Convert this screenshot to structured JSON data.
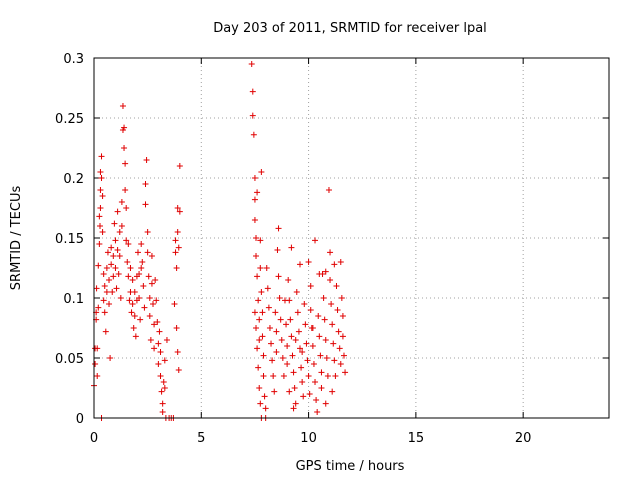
{
  "chart_data": {
    "type": "scatter",
    "title": "Day 203 of 2011, SRMTID for receiver lpal",
    "xlabel": "GPS time / hours",
    "ylabel": "SRMTID / TECUs",
    "xlim": [
      0,
      24
    ],
    "ylim": [
      0,
      0.3
    ],
    "xticks": [
      0,
      5,
      10,
      15,
      20
    ],
    "xtick_labels": [
      "0",
      "5",
      "10",
      "15",
      "20"
    ],
    "yticks": [
      0,
      0.05,
      0.1,
      0.15,
      0.2,
      0.25,
      0.3
    ],
    "ytick_labels": [
      "0",
      "0.05",
      "0.1",
      "0.15",
      "0.2",
      "0.25",
      "0.3"
    ],
    "grid": true,
    "marker": "+",
    "series": [
      {
        "name": "SRMTID",
        "color": "#e00000",
        "points": [
          [
            0.0,
            0.027
          ],
          [
            0.05,
            0.045
          ],
          [
            0.05,
            0.058
          ],
          [
            0.1,
            0.082
          ],
          [
            0.1,
            0.088
          ],
          [
            0.12,
            0.108
          ],
          [
            0.15,
            0.058
          ],
          [
            0.15,
            0.035
          ],
          [
            0.2,
            0.092
          ],
          [
            0.2,
            0.127
          ],
          [
            0.25,
            0.168
          ],
          [
            0.25,
            0.145
          ],
          [
            0.28,
            0.16
          ],
          [
            0.3,
            0.19
          ],
          [
            0.3,
            0.205
          ],
          [
            0.3,
            0.175
          ],
          [
            0.35,
            0.218
          ],
          [
            0.35,
            0.2
          ],
          [
            0.35,
            0.0
          ],
          [
            0.4,
            0.185
          ],
          [
            0.4,
            0.155
          ],
          [
            0.45,
            0.12
          ],
          [
            0.45,
            0.098
          ],
          [
            0.5,
            0.11
          ],
          [
            0.5,
            0.088
          ],
          [
            0.55,
            0.072
          ],
          [
            0.6,
            0.125
          ],
          [
            0.6,
            0.105
          ],
          [
            0.65,
            0.138
          ],
          [
            0.7,
            0.115
          ],
          [
            0.7,
            0.095
          ],
          [
            0.75,
            0.05
          ],
          [
            0.8,
            0.142
          ],
          [
            0.8,
            0.128
          ],
          [
            0.85,
            0.105
          ],
          [
            0.9,
            0.135
          ],
          [
            0.9,
            0.118
          ],
          [
            0.95,
            0.162
          ],
          [
            1.0,
            0.148
          ],
          [
            1.0,
            0.125
          ],
          [
            1.05,
            0.108
          ],
          [
            1.1,
            0.172
          ],
          [
            1.1,
            0.14
          ],
          [
            1.15,
            0.12
          ],
          [
            1.2,
            0.155
          ],
          [
            1.2,
            0.135
          ],
          [
            1.25,
            0.1
          ],
          [
            1.3,
            0.18
          ],
          [
            1.3,
            0.16
          ],
          [
            1.35,
            0.24
          ],
          [
            1.35,
            0.26
          ],
          [
            1.4,
            0.242
          ],
          [
            1.4,
            0.225
          ],
          [
            1.45,
            0.212
          ],
          [
            1.45,
            0.19
          ],
          [
            1.5,
            0.175
          ],
          [
            1.5,
            0.148
          ],
          [
            1.55,
            0.13
          ],
          [
            1.6,
            0.145
          ],
          [
            1.6,
            0.118
          ],
          [
            1.65,
            0.098
          ],
          [
            1.7,
            0.125
          ],
          [
            1.7,
            0.105
          ],
          [
            1.75,
            0.088
          ],
          [
            1.8,
            0.115
          ],
          [
            1.8,
            0.095
          ],
          [
            1.85,
            0.075
          ],
          [
            1.9,
            0.105
          ],
          [
            1.9,
            0.085
          ],
          [
            1.95,
            0.068
          ],
          [
            2.0,
            0.098
          ],
          [
            2.0,
            0.118
          ],
          [
            2.05,
            0.138
          ],
          [
            2.1,
            0.12
          ],
          [
            2.1,
            0.1
          ],
          [
            2.15,
            0.082
          ],
          [
            2.2,
            0.125
          ],
          [
            2.2,
            0.145
          ],
          [
            2.25,
            0.13
          ],
          [
            2.3,
            0.11
          ],
          [
            2.35,
            0.092
          ],
          [
            2.4,
            0.195
          ],
          [
            2.4,
            0.178
          ],
          [
            2.45,
            0.215
          ],
          [
            2.5,
            0.155
          ],
          [
            2.5,
            0.138
          ],
          [
            2.55,
            0.118
          ],
          [
            2.6,
            0.1
          ],
          [
            2.6,
            0.085
          ],
          [
            2.65,
            0.065
          ],
          [
            2.7,
            0.135
          ],
          [
            2.7,
            0.112
          ],
          [
            2.75,
            0.095
          ],
          [
            2.8,
            0.078
          ],
          [
            2.8,
            0.058
          ],
          [
            2.85,
            0.115
          ],
          [
            2.9,
            0.098
          ],
          [
            2.95,
            0.08
          ],
          [
            3.0,
            0.062
          ],
          [
            3.0,
            0.045
          ],
          [
            3.05,
            0.072
          ],
          [
            3.1,
            0.055
          ],
          [
            3.1,
            0.035
          ],
          [
            3.15,
            0.022
          ],
          [
            3.2,
            0.012
          ],
          [
            3.2,
            0.005
          ],
          [
            3.25,
            0.03
          ],
          [
            3.3,
            0.048
          ],
          [
            3.3,
            0.025
          ],
          [
            3.35,
            0.0
          ],
          [
            3.4,
            0.065
          ],
          [
            3.5,
            0.0
          ],
          [
            3.6,
            0.0
          ],
          [
            3.7,
            0.0
          ],
          [
            3.75,
            0.095
          ],
          [
            3.8,
            0.148
          ],
          [
            3.8,
            0.138
          ],
          [
            3.85,
            0.125
          ],
          [
            3.9,
            0.175
          ],
          [
            3.9,
            0.155
          ],
          [
            3.95,
            0.142
          ],
          [
            4.0,
            0.172
          ],
          [
            4.0,
            0.21
          ],
          [
            3.9,
            0.055
          ],
          [
            3.95,
            0.04
          ],
          [
            3.85,
            0.075
          ],
          [
            7.35,
            0.295
          ],
          [
            7.4,
            0.272
          ],
          [
            7.4,
            0.252
          ],
          [
            7.45,
            0.236
          ],
          [
            7.5,
            0.2
          ],
          [
            7.5,
            0.182
          ],
          [
            7.5,
            0.165
          ],
          [
            7.55,
            0.15
          ],
          [
            7.55,
            0.135
          ],
          [
            7.6,
            0.188
          ],
          [
            7.6,
            0.118
          ],
          [
            7.65,
            0.098
          ],
          [
            7.7,
            0.082
          ],
          [
            7.7,
            0.065
          ],
          [
            7.75,
            0.148
          ],
          [
            7.75,
            0.125
          ],
          [
            7.8,
            0.205
          ],
          [
            7.8,
            0.105
          ],
          [
            7.85,
            0.088
          ],
          [
            7.85,
            0.068
          ],
          [
            7.9,
            0.052
          ],
          [
            7.9,
            0.035
          ],
          [
            7.95,
            0.018
          ],
          [
            8.0,
            0.008
          ],
          [
            8.0,
            0.0
          ],
          [
            7.5,
            0.088
          ],
          [
            7.55,
            0.075
          ],
          [
            7.6,
            0.058
          ],
          [
            7.65,
            0.042
          ],
          [
            7.7,
            0.025
          ],
          [
            7.75,
            0.012
          ],
          [
            7.8,
            0.0
          ],
          [
            8.05,
            0.125
          ],
          [
            8.1,
            0.108
          ],
          [
            8.15,
            0.092
          ],
          [
            8.2,
            0.075
          ],
          [
            8.25,
            0.062
          ],
          [
            8.3,
            0.048
          ],
          [
            8.35,
            0.035
          ],
          [
            8.4,
            0.022
          ],
          [
            8.45,
            0.088
          ],
          [
            8.5,
            0.072
          ],
          [
            8.5,
            0.055
          ],
          [
            8.55,
            0.14
          ],
          [
            8.6,
            0.118
          ],
          [
            8.65,
            0.1
          ],
          [
            8.7,
            0.082
          ],
          [
            8.75,
            0.065
          ],
          [
            8.8,
            0.05
          ],
          [
            8.85,
            0.035
          ],
          [
            8.9,
            0.098
          ],
          [
            8.95,
            0.078
          ],
          [
            9.0,
            0.06
          ],
          [
            9.0,
            0.045
          ],
          [
            9.05,
            0.115
          ],
          [
            9.1,
            0.098
          ],
          [
            9.15,
            0.082
          ],
          [
            9.2,
            0.068
          ],
          [
            9.25,
            0.052
          ],
          [
            9.3,
            0.038
          ],
          [
            9.35,
            0.025
          ],
          [
            9.4,
            0.012
          ],
          [
            9.45,
            0.105
          ],
          [
            9.5,
            0.088
          ],
          [
            9.55,
            0.072
          ],
          [
            9.6,
            0.058
          ],
          [
            9.65,
            0.042
          ],
          [
            9.7,
            0.03
          ],
          [
            9.75,
            0.018
          ],
          [
            9.8,
            0.095
          ],
          [
            9.85,
            0.078
          ],
          [
            9.9,
            0.062
          ],
          [
            9.95,
            0.048
          ],
          [
            10.0,
            0.035
          ],
          [
            10.05,
            0.02
          ],
          [
            10.1,
            0.11
          ],
          [
            10.1,
            0.09
          ],
          [
            10.15,
            0.075
          ],
          [
            10.2,
            0.06
          ],
          [
            10.25,
            0.045
          ],
          [
            10.3,
            0.03
          ],
          [
            10.35,
            0.015
          ],
          [
            10.4,
            0.005
          ],
          [
            10.45,
            0.085
          ],
          [
            10.5,
            0.068
          ],
          [
            10.55,
            0.052
          ],
          [
            10.6,
            0.038
          ],
          [
            10.65,
            0.12
          ],
          [
            10.7,
            0.1
          ],
          [
            10.75,
            0.082
          ],
          [
            10.8,
            0.065
          ],
          [
            10.85,
            0.05
          ],
          [
            10.9,
            0.035
          ],
          [
            10.95,
            0.19
          ],
          [
            11.0,
            0.138
          ],
          [
            11.0,
            0.115
          ],
          [
            11.05,
            0.095
          ],
          [
            11.1,
            0.078
          ],
          [
            11.15,
            0.062
          ],
          [
            11.2,
            0.048
          ],
          [
            11.25,
            0.035
          ],
          [
            11.3,
            0.11
          ],
          [
            11.35,
            0.09
          ],
          [
            11.4,
            0.072
          ],
          [
            11.45,
            0.058
          ],
          [
            11.5,
            0.045
          ],
          [
            11.5,
            0.13
          ],
          [
            11.55,
            0.1
          ],
          [
            11.6,
            0.085
          ],
          [
            11.6,
            0.068
          ],
          [
            11.65,
            0.052
          ],
          [
            11.7,
            0.038
          ],
          [
            8.6,
            0.158
          ],
          [
            9.2,
            0.142
          ],
          [
            9.6,
            0.128
          ],
          [
            10.0,
            0.13
          ],
          [
            10.3,
            0.148
          ],
          [
            10.5,
            0.12
          ],
          [
            10.8,
            0.122
          ],
          [
            11.2,
            0.128
          ],
          [
            9.4,
            0.065
          ],
          [
            9.7,
            0.055
          ],
          [
            10.2,
            0.075
          ],
          [
            10.6,
            0.025
          ],
          [
            10.8,
            0.012
          ],
          [
            11.1,
            0.022
          ],
          [
            9.1,
            0.022
          ],
          [
            9.3,
            0.008
          ]
        ]
      }
    ]
  }
}
